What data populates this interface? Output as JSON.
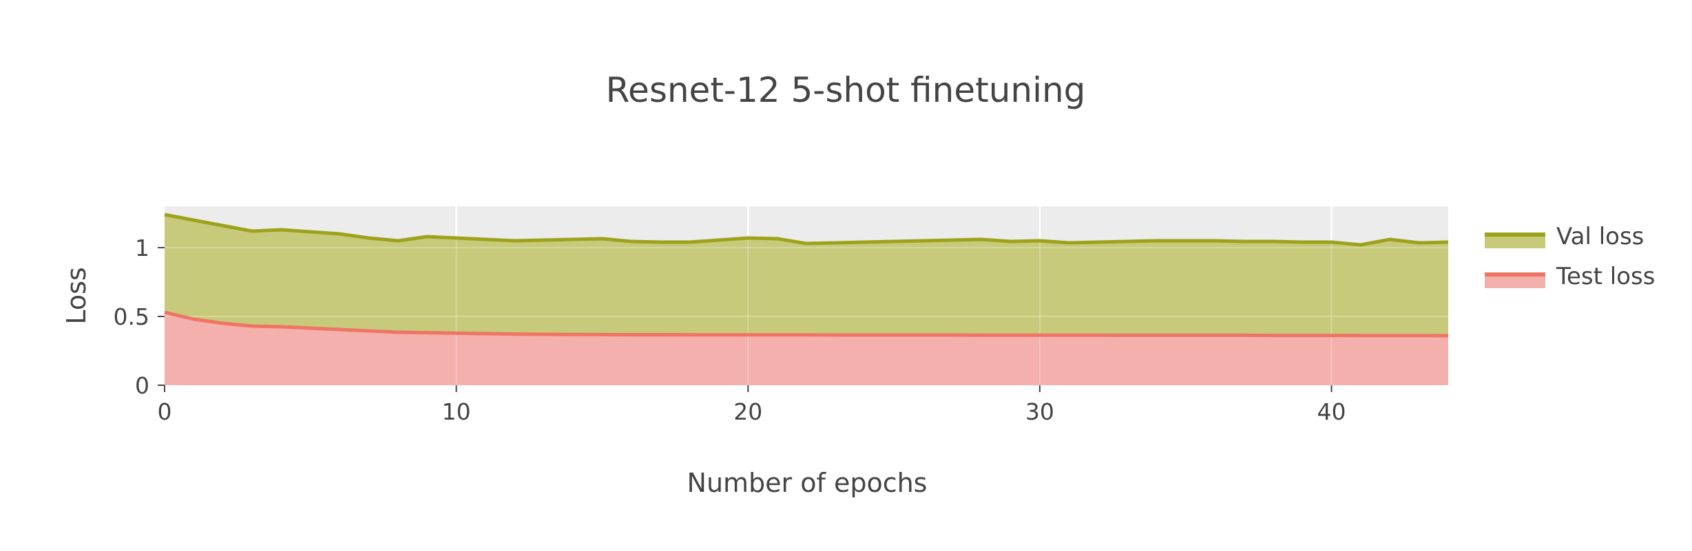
{
  "chart_data": {
    "type": "area",
    "title": "Resnet-12 5-shot finetuning",
    "xlabel": "Number of epochs",
    "ylabel": "Loss",
    "xlim": [
      0,
      44
    ],
    "ylim": [
      0,
      1.3
    ],
    "x_ticks": [
      0,
      10,
      20,
      30,
      40
    ],
    "y_ticks": [
      0,
      0.5,
      1
    ],
    "y_tick_labels": [
      "0",
      "0.5",
      "1"
    ],
    "grid": true,
    "background": "#ececec",
    "legend_position": "right",
    "series": [
      {
        "name": "Val loss",
        "line_color": "#9ca31a",
        "fill_color": "#c7ca7b",
        "x": [
          0,
          1,
          2,
          3,
          4,
          5,
          6,
          7,
          8,
          9,
          10,
          11,
          12,
          13,
          14,
          15,
          16,
          17,
          18,
          19,
          20,
          21,
          22,
          23,
          24,
          25,
          26,
          27,
          28,
          29,
          30,
          31,
          32,
          33,
          34,
          35,
          36,
          37,
          38,
          39,
          40,
          41,
          42,
          43,
          44
        ],
        "y": [
          1.24,
          1.2,
          1.16,
          1.12,
          1.13,
          1.115,
          1.1,
          1.07,
          1.05,
          1.08,
          1.07,
          1.06,
          1.05,
          1.055,
          1.06,
          1.065,
          1.045,
          1.04,
          1.04,
          1.055,
          1.07,
          1.065,
          1.03,
          1.035,
          1.04,
          1.045,
          1.05,
          1.055,
          1.06,
          1.045,
          1.05,
          1.035,
          1.04,
          1.045,
          1.05,
          1.05,
          1.05,
          1.045,
          1.045,
          1.04,
          1.04,
          1.02,
          1.06,
          1.035,
          1.04
        ]
      },
      {
        "name": "Test loss",
        "line_color": "#f07464",
        "fill_color": "#f3b0ad",
        "x": [
          0,
          1,
          2,
          3,
          4,
          5,
          6,
          7,
          8,
          9,
          10,
          11,
          12,
          13,
          14,
          15,
          16,
          17,
          18,
          19,
          20,
          21,
          22,
          23,
          24,
          25,
          26,
          27,
          28,
          29,
          30,
          31,
          32,
          33,
          34,
          35,
          36,
          37,
          38,
          39,
          40,
          41,
          42,
          43,
          44
        ],
        "y": [
          0.53,
          0.48,
          0.45,
          0.43,
          0.425,
          0.415,
          0.405,
          0.395,
          0.385,
          0.382,
          0.378,
          0.375,
          0.372,
          0.37,
          0.369,
          0.368,
          0.367,
          0.367,
          0.366,
          0.366,
          0.366,
          0.366,
          0.366,
          0.365,
          0.365,
          0.365,
          0.365,
          0.365,
          0.364,
          0.364,
          0.364,
          0.364,
          0.364,
          0.363,
          0.363,
          0.363,
          0.363,
          0.363,
          0.362,
          0.362,
          0.362,
          0.361,
          0.361,
          0.361,
          0.36
        ]
      }
    ]
  }
}
